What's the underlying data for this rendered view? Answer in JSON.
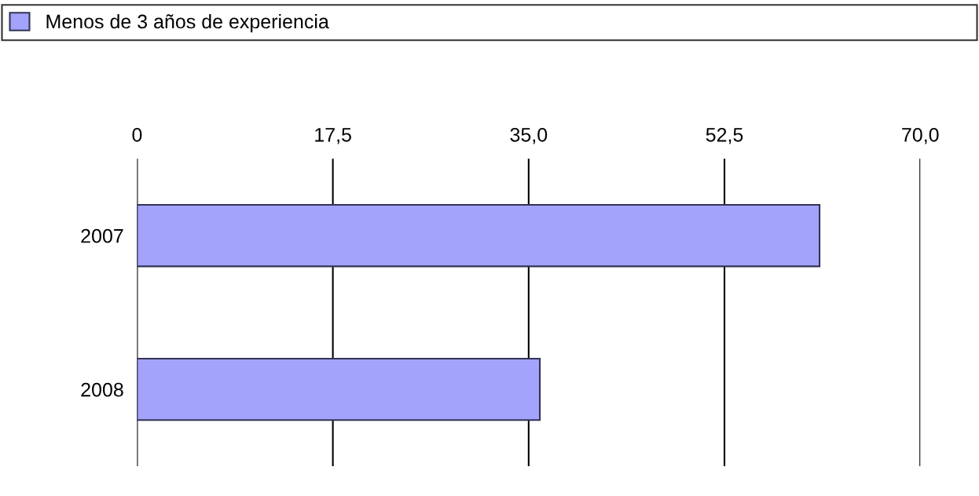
{
  "chart_data": {
    "type": "bar",
    "orientation": "horizontal",
    "categories": [
      "2007",
      "2008"
    ],
    "series": [
      {
        "name": "Menos de 3 años de experiencia",
        "color": "#a3a3fb",
        "values": [
          61,
          36
        ]
      }
    ],
    "xlim": [
      0,
      70
    ],
    "xticks": [
      {
        "value": 0,
        "label": "0"
      },
      {
        "value": 17.5,
        "label": "17,5"
      },
      {
        "value": 35,
        "label": "35,0"
      },
      {
        "value": 52.5,
        "label": "52,5"
      },
      {
        "value": 70,
        "label": "70,0"
      }
    ],
    "grid": "x",
    "legend": "top"
  }
}
